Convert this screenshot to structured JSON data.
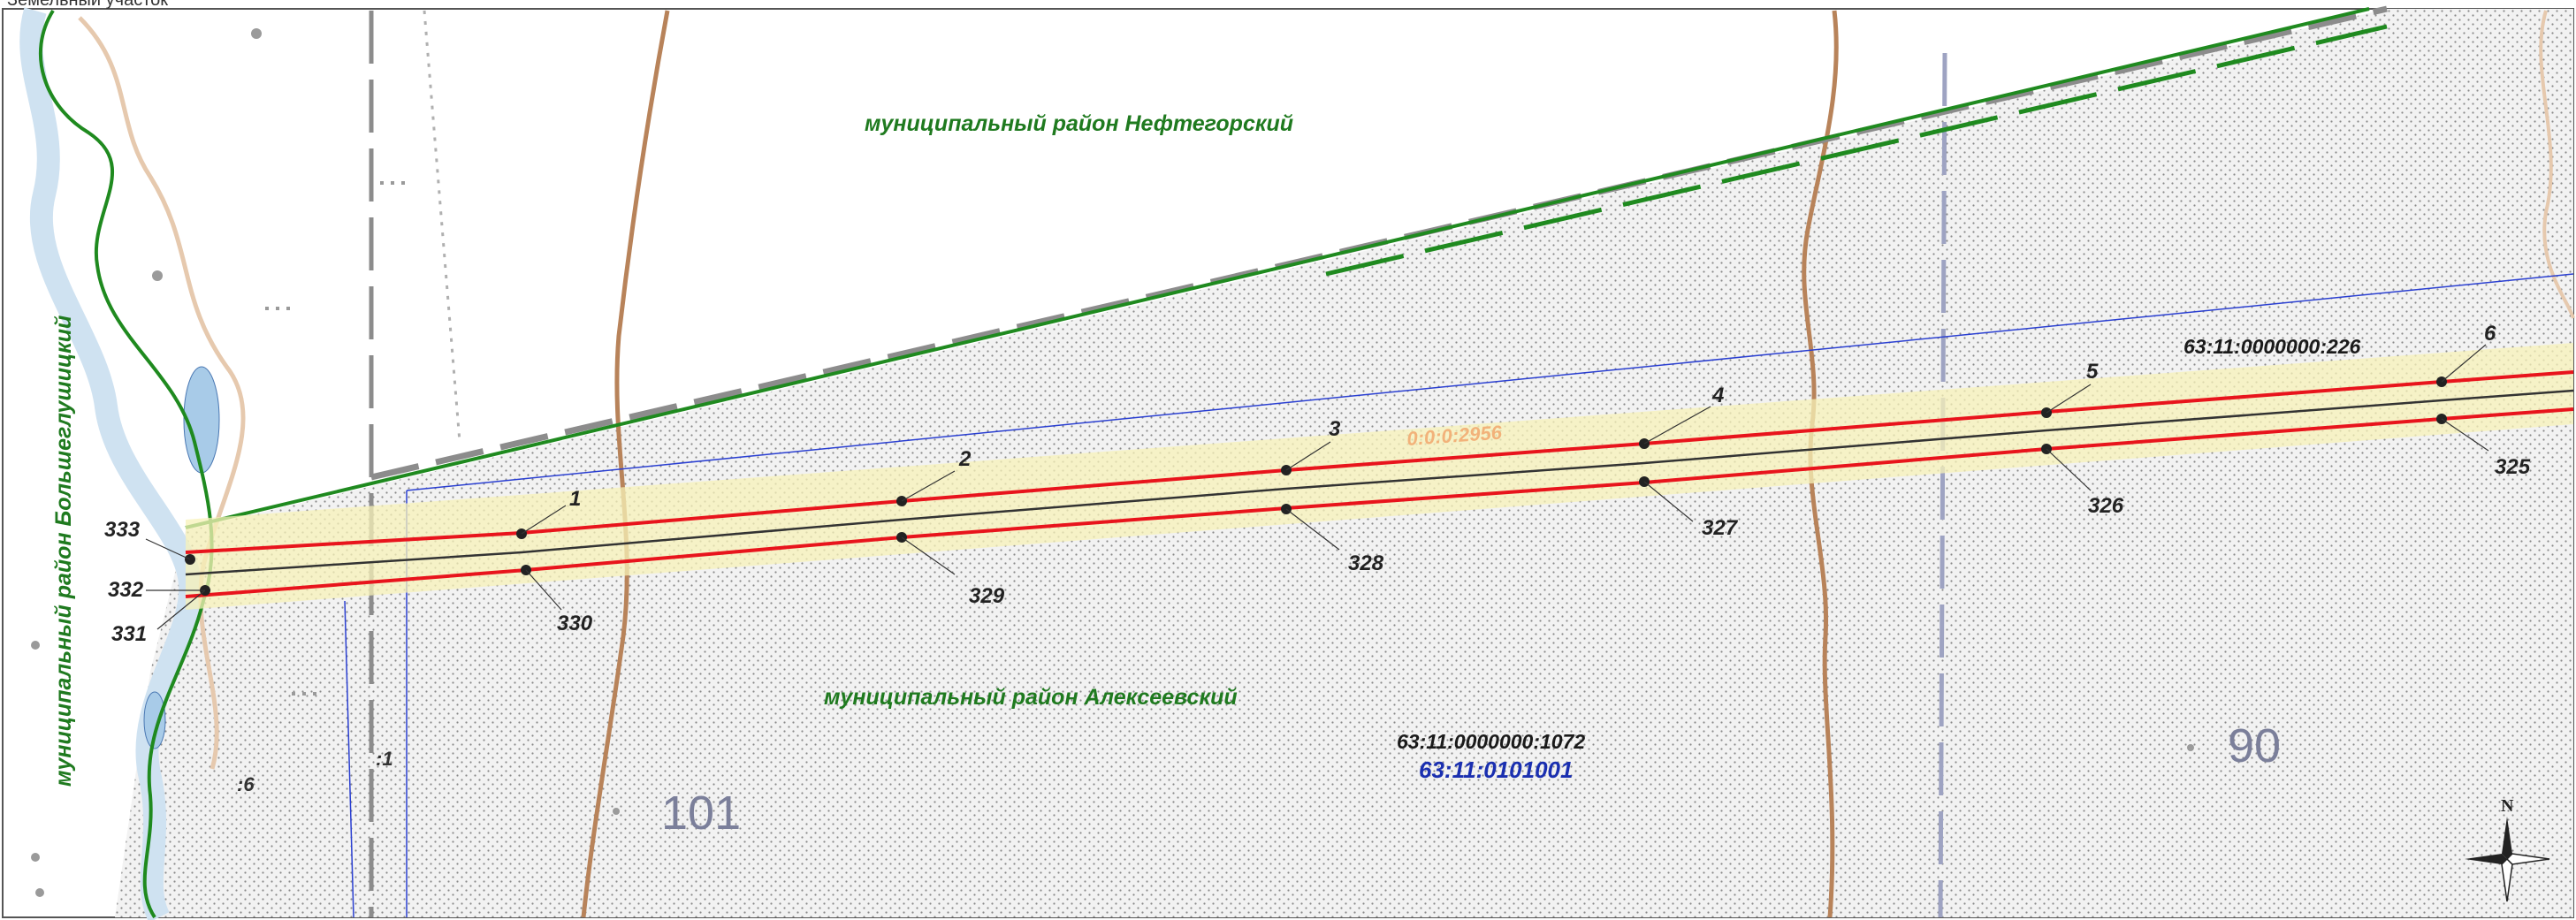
{
  "header": {
    "title_fragment": "Земельный участок"
  },
  "map": {
    "regions": {
      "north": "муниципальный район Нефтегорский",
      "south": "муниципальный район Алексеевский",
      "west": "муниципальный район Большеглушицкий"
    },
    "cadastral_numbers": {
      "parcel_226": "63:11:0000000:226",
      "parcel_1072": "63:11:0000000:1072",
      "quarter": "63:11:0101001",
      "zone": "0:0:0:2956"
    },
    "parcel_numbers": {
      "p101": "101",
      "p90": "90"
    },
    "small_labels": {
      "s6": ":6",
      "s1": ":1"
    },
    "points_north": [
      "333",
      "1",
      "2",
      "3",
      "4",
      "5",
      "6"
    ],
    "points_south": [
      "332",
      "331",
      "330",
      "329",
      "328",
      "327",
      "326",
      "325"
    ],
    "compass": {
      "north_label": "N"
    },
    "colors": {
      "corridor_red": "#e8141c",
      "centerline": "#333333",
      "buffer_yellow": "#f7f1b8",
      "boundary_green": "#1f8a1f",
      "boundary_dash": "#8c8c8c",
      "parcel_blue": "#2a3fd1",
      "contour_brown": "#b8835a",
      "river_blue": "#a8cbe8"
    }
  }
}
